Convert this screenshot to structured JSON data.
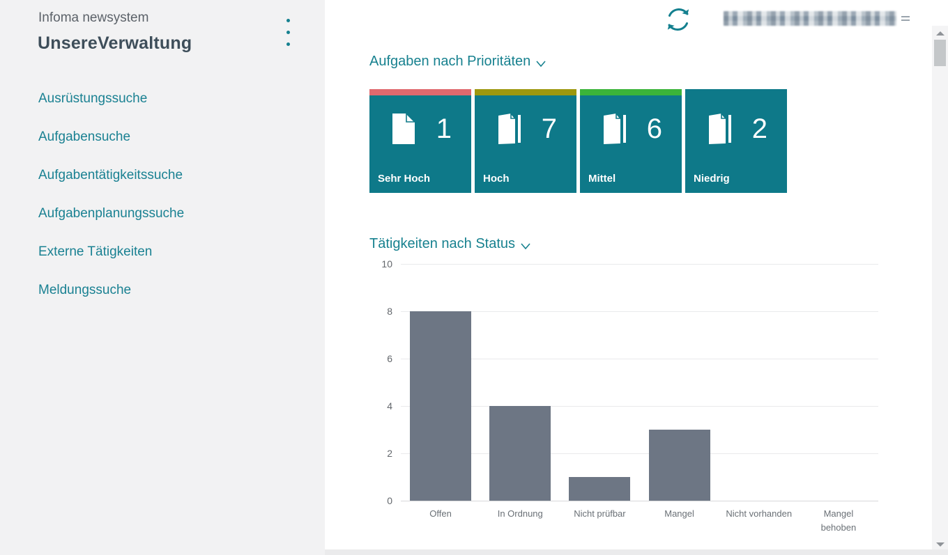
{
  "app": {
    "product": "Infoma newsystem",
    "workspace": "UnsereVerwaltung"
  },
  "colors": {
    "accent_teal": "#15808f",
    "tile_teal": "#0e7989",
    "sidebar_bg": "#f2f2f3",
    "bar_gray": "#6d7684",
    "strip_red": "#e0696e",
    "strip_olive": "#9d980f",
    "strip_green": "#3bb43a"
  },
  "sidebar": {
    "menu_icon": "kebab-menu-icon",
    "items": [
      {
        "label": "Ausrüstungssuche"
      },
      {
        "label": "Aufgabensuche"
      },
      {
        "label": "Aufgabentätigkeitssuche"
      },
      {
        "label": "Aufgabenplanungssuche"
      },
      {
        "label": "Externe Tätigkeiten"
      },
      {
        "label": "Meldungssuche"
      }
    ]
  },
  "topbar": {
    "refresh_icon": "refresh-icon",
    "user_area_redacted": true
  },
  "sections": {
    "priorities": {
      "title": "Aufgaben nach Prioritäten",
      "chevron_icon": "chevron-down-icon",
      "tiles": [
        {
          "label": "Sehr Hoch",
          "count": 1,
          "strip_color": "#e0696e",
          "icon": "document-icon"
        },
        {
          "label": "Hoch",
          "count": 7,
          "strip_color": "#9d980f",
          "icon": "documents-icon"
        },
        {
          "label": "Mittel",
          "count": 6,
          "strip_color": "#3bb43a",
          "icon": "documents-icon"
        },
        {
          "label": "Niedrig",
          "count": 2,
          "strip_color": "#0e7989",
          "icon": "documents-icon"
        }
      ]
    }
  },
  "chart_data": {
    "type": "bar",
    "title": "Tätigkeiten nach Status",
    "categories": [
      "Offen",
      "In Ordnung",
      "Nicht prüfbar",
      "Mangel",
      "Nicht vorhanden",
      "Mangel behoben"
    ],
    "values": [
      8,
      4,
      1,
      3,
      0,
      0
    ],
    "xlabel": "",
    "ylabel": "",
    "ylim": [
      0,
      10
    ],
    "yticks": [
      0,
      2,
      4,
      6,
      8,
      10
    ],
    "bar_color": "#6d7684",
    "grid": true,
    "legend": false
  }
}
